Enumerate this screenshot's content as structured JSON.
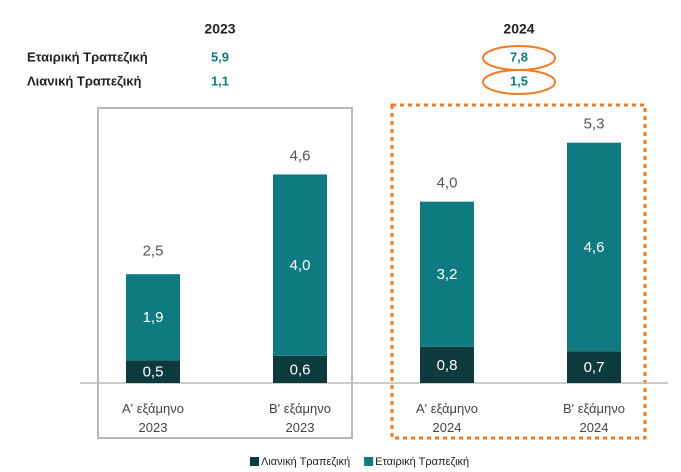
{
  "chart_data": {
    "type": "stacked_bar",
    "categories": [
      "Α' εξάμηνο\n2023",
      "Β' εξάμηνο\n2023",
      "Α' εξάμηνο\n2024",
      "Β' εξάμηνο\n2024"
    ],
    "series": [
      {
        "name": "Λιανική Τραπεζική",
        "color": "#0c3a3d",
        "values": [
          0.5,
          0.6,
          0.8,
          0.7
        ],
        "value_labels": [
          "0,5",
          "0,6",
          "0,8",
          "0,7"
        ]
      },
      {
        "name": "Εταιρική Τραπεζική",
        "color": "#0f7b80",
        "values": [
          1.9,
          4.0,
          3.2,
          4.6
        ],
        "value_labels": [
          "1,9",
          "4,0",
          "3,2",
          "4,6"
        ]
      }
    ],
    "totals": [
      2.5,
      4.6,
      4.0,
      5.3
    ],
    "total_labels": [
      "2,5",
      "4,6",
      "4,0",
      "5,3"
    ],
    "ylim": [
      0,
      6
    ],
    "summary": {
      "years": [
        "2023",
        "2024"
      ],
      "rows": [
        {
          "name": "Εταιρική Τραπεζική",
          "values": [
            5.9,
            7.8
          ],
          "value_labels": [
            "5,9",
            "7,8"
          ]
        },
        {
          "name": "Λιανική Τραπεζική",
          "values": [
            1.1,
            1.5
          ],
          "value_labels": [
            "1,1",
            "1,5"
          ]
        }
      ]
    }
  }
}
